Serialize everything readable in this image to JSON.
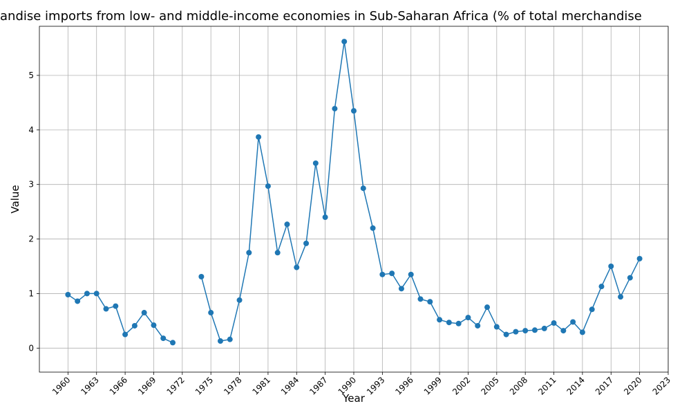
{
  "chart_data": {
    "type": "line",
    "title": "andise imports from low- and middle-income economies in Sub-Saharan Africa (% of total merchandise",
    "x_label": "Year",
    "y_label": "Value",
    "x": [
      1960,
      1961,
      1962,
      1963,
      1964,
      1965,
      1966,
      1967,
      1968,
      1969,
      1970,
      1971,
      1972,
      1973,
      1974,
      1975,
      1976,
      1977,
      1978,
      1979,
      1980,
      1981,
      1982,
      1983,
      1984,
      1985,
      1986,
      1987,
      1988,
      1989,
      1990,
      1991,
      1992,
      1993,
      1994,
      1995,
      1996,
      1997,
      1998,
      1999,
      2000,
      2001,
      2002,
      2003,
      2004,
      2005,
      2006,
      2007,
      2008,
      2009,
      2010,
      2011,
      2012,
      2013,
      2014,
      2015,
      2016,
      2017,
      2018,
      2019,
      2020
    ],
    "series": [
      {
        "name": "Value",
        "color": "#1f77b4",
        "values": [
          0.98,
          0.86,
          1.0,
          1.0,
          0.72,
          0.77,
          0.25,
          0.41,
          0.65,
          0.42,
          0.18,
          0.1,
          null,
          null,
          1.31,
          0.65,
          0.13,
          0.16,
          0.88,
          1.75,
          3.87,
          2.97,
          1.75,
          2.27,
          1.48,
          1.92,
          3.39,
          2.4,
          4.39,
          5.62,
          4.35,
          2.93,
          2.2,
          1.35,
          1.37,
          1.09,
          1.35,
          0.9,
          0.85,
          0.52,
          0.47,
          0.45,
          0.56,
          0.41,
          0.75,
          0.39,
          0.25,
          0.3,
          0.32,
          0.33,
          0.36,
          0.46,
          0.32,
          0.48,
          0.29,
          0.71,
          1.13,
          1.5,
          0.94,
          1.29,
          1.64
        ]
      }
    ],
    "xlim": [
      1957,
      2023
    ],
    "ylim": [
      -0.44,
      5.9
    ],
    "xticks": [
      1960,
      1963,
      1966,
      1969,
      1972,
      1975,
      1978,
      1981,
      1984,
      1987,
      1990,
      1993,
      1996,
      1999,
      2002,
      2005,
      2008,
      2011,
      2014,
      2017,
      2020,
      2023
    ],
    "yticks": [
      0,
      1,
      2,
      3,
      4,
      5
    ],
    "grid": true
  }
}
